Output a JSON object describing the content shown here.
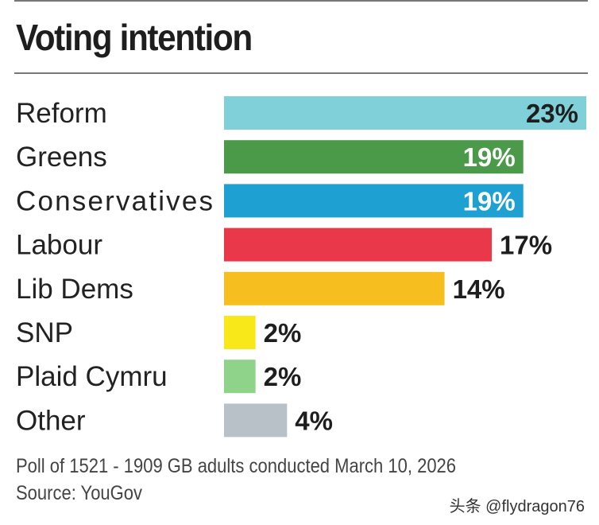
{
  "chart_data": {
    "type": "bar",
    "orientation": "horizontal",
    "title": "Voting intention",
    "categories": [
      "Reform",
      "Greens",
      "Conservatives",
      "Labour",
      "Lib Dems",
      "SNP",
      "Plaid Cymru",
      "Other"
    ],
    "values": [
      23,
      19,
      19,
      17,
      14,
      2,
      2,
      4
    ],
    "data_labels": [
      "23%",
      "19%",
      "19%",
      "17%",
      "14%",
      "2%",
      "2%",
      "4%"
    ],
    "colors": [
      "#7fd0d8",
      "#4a9a4a",
      "#1ea0d2",
      "#e8384a",
      "#f6be1e",
      "#f8e81a",
      "#8fd28a",
      "#b8c0c8"
    ],
    "label_inside": [
      true,
      true,
      true,
      false,
      false,
      false,
      false,
      false
    ],
    "label_colors": [
      "#1e1e1e",
      "#ffffff",
      "#ffffff",
      "#1e1e1e",
      "#1e1e1e",
      "#1e1e1e",
      "#1e1e1e",
      "#1e1e1e"
    ],
    "xlim": [
      0,
      23
    ],
    "grid": false
  },
  "footer": {
    "note": "Poll of 1521 - 1909 GB adults conducted March 10, 2026",
    "source": "Source: YouGov"
  },
  "watermark": "头条 @flydragon76"
}
